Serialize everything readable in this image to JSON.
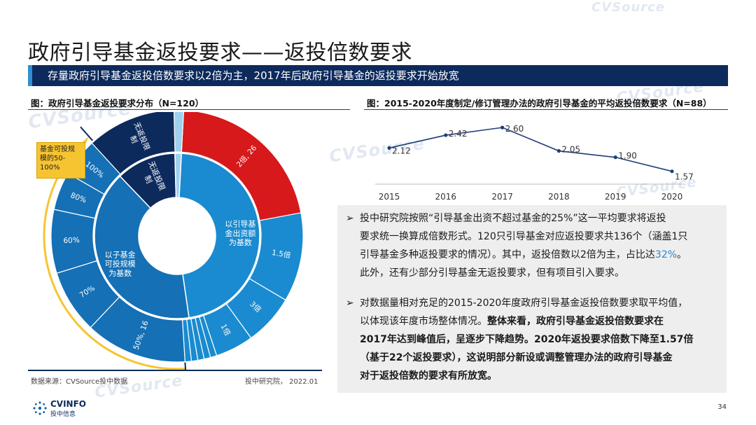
{
  "title": "政府引导基金返投要求——返投倍数要求",
  "subtitle": "存量政府引导基金返投倍数要求以2倍为主，2017年后政府引导基金的返投要求开始放宽",
  "left_chart_title": "图：政府引导基金返投要求分布（N=120）",
  "right_chart_title": "图：2015-2020年度制定/修订管理办法的政府引导基金的平均返投倍数要求（N=88）",
  "source": "数据来源：CVSource投中数据",
  "source_right": "投中研究院，  2022.01",
  "page_number": "34",
  "logo_text": "CVINFO",
  "logo_sub": "投中信息",
  "watermark": "CVSource",
  "watermark_sub": "投中数据",
  "callout": [
    "基金可投规",
    "模的50-",
    "100%"
  ],
  "paragraphs": [
    {
      "lines": [
        "投中研究院按照“引导基金出资不超过基金的25%”这一平均要求将返投",
        "要求统一换算成倍数形式。120只引导基金对应返投要求共136个（涵盖1只",
        "引导基金多种返投要求的情况）。其中，返投倍数以2倍为主，占比达",
        "此外，还有少部分引导基金无返投要求，但有项目引入要求。"
      ],
      "highlight": "32%",
      "highlight_tail": "。"
    },
    {
      "lines": [
        "对数据量相对充足的2015-2020年度政府引导基金返投倍数要求取平均值，",
        "以体现该年度市场整体情况。",
        "2017年达到峰值后，呈逐步下降趋势。2020年返投要求倍数下降至1.57倍",
        "（基于22个返投要求），这说明部分新设或调整管理办法的政府引导基金",
        "对于返投倍数的要求有所放宽。"
      ],
      "bold_inline": "整体来看，政府引导基金返投倍数要求在"
    }
  ],
  "colors": {
    "navy": "#0d2a5c",
    "blue": "#1a8bd0",
    "mid_blue": "#1570b5",
    "red": "#d7191c",
    "light_blue": "#9fd0ee",
    "highlight": "#2f86c8",
    "callout": "#f7c431"
  },
  "chart_data": [
    {
      "type": "sunburst",
      "title": "图：政府引导基金返投要求分布（N=120）",
      "inner": [
        {
          "name": "以引导基金出资额为基数",
          "label": "以引导基\n金出资额\n为基数",
          "value": 56,
          "color": "#1a8bd0"
        },
        {
          "name": "以子基金可投规模为基数",
          "label": "以子基金\n可投规模\n为基数",
          "value": 48,
          "color": "#1570b5"
        },
        {
          "name": "无返投限制",
          "label": "无返投限\n制",
          "value": 14,
          "color": "#0d2a5c"
        },
        {
          "name": "其他",
          "label": "",
          "value": 1.5,
          "color": "#9fd0ee"
        }
      ],
      "outer": [
        {
          "parent": "以引导基金出资额为基数",
          "label": "2倍, 26",
          "value": 26,
          "color": "#d7191c"
        },
        {
          "parent": "以引导基金出资额为基数",
          "label": "1.5倍",
          "value": 14,
          "color": "#1a8bd0"
        },
        {
          "parent": "以引导基金出资额为基数",
          "label": "3倍",
          "value": 8,
          "color": "#1a8bd0"
        },
        {
          "parent": "以引导基金出资额为基数",
          "label": "1倍",
          "value": 6,
          "color": "#1a8bd0"
        },
        {
          "parent": "以引导基金出资额为基数",
          "label": "",
          "value": 1,
          "color": "#1a8bd0"
        },
        {
          "parent": "以引导基金出资额为基数",
          "label": "",
          "value": 1,
          "color": "#1a8bd0"
        },
        {
          "parent": "以引导基金出资额为基数",
          "label": "",
          "value": 1,
          "color": "#1a8bd0"
        },
        {
          "parent": "以引导基金出资额为基数",
          "label": "",
          "value": 1,
          "color": "#1a8bd0"
        },
        {
          "parent": "以引导基金出资额为基数",
          "label": "",
          "value": 1,
          "color": "#1a8bd0"
        },
        {
          "parent": "以子基金可投规模为基数",
          "label": "50%, 16",
          "value": 16,
          "color": "#1570b5"
        },
        {
          "parent": "以子基金可投规模为基数",
          "label": "70%",
          "value": 10,
          "color": "#1570b5"
        },
        {
          "parent": "以子基金可投规模为基数",
          "label": "60%",
          "value": 10,
          "color": "#1570b5"
        },
        {
          "parent": "以子基金可投规模为基数",
          "label": "80%",
          "value": 6,
          "color": "#1570b5"
        },
        {
          "parent": "以子基金可投规模为基数",
          "label": "100%",
          "value": 6,
          "color": "#1570b5"
        },
        {
          "parent": "无返投限制",
          "label": "无返投限\n制",
          "value": 14,
          "color": "#0d2a5c"
        },
        {
          "parent": "其他",
          "label": "",
          "value": 1.5,
          "color": "#9fd0ee"
        }
      ]
    },
    {
      "type": "line",
      "title": "图：2015-2020年度制定/修订管理办法的政府引导基金的平均返投倍数要求（N=88）",
      "x": [
        "2015",
        "2016",
        "2017",
        "2018",
        "2019",
        "2020"
      ],
      "series": [
        {
          "values": [
            2.12,
            2.42,
            2.6,
            2.05,
            1.9,
            1.57
          ]
        }
      ],
      "labels": [
        "2.12",
        "2.42",
        "2.60",
        "2.05",
        "1.90",
        "1.57"
      ],
      "ylim": [
        1.4,
        2.8
      ],
      "grid": false,
      "color": "#1f3f7a"
    }
  ]
}
